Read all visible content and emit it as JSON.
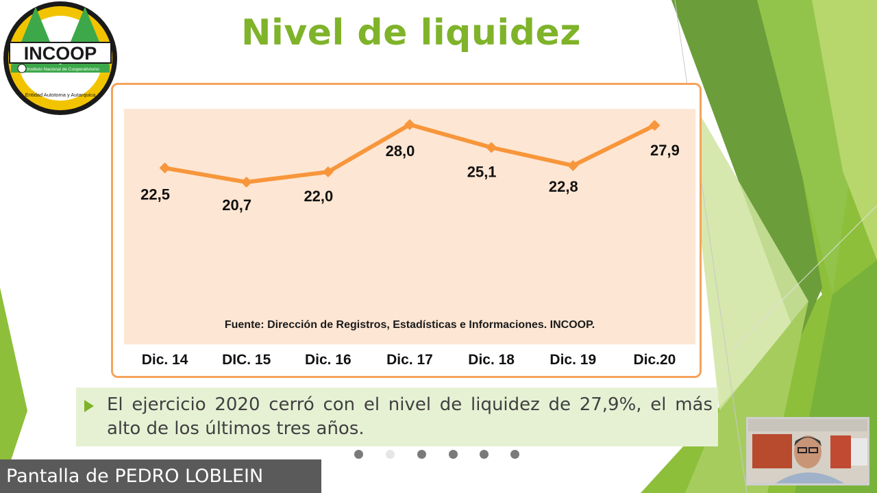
{
  "logo": {
    "name": "INCOOP",
    "subtitle": "Instituto Nacional de Cooperativismo",
    "ring_text": "Entidad Autotoma y Autarquica"
  },
  "slide": {
    "title": "Nivel de liquidez",
    "bullet_text": "El ejercicio 2020 cerró con el nivel de liquidez de 27,9%, el más alto de los últimos tres años.",
    "active_dot_index": 1,
    "dot_count": 6
  },
  "chart_data": {
    "type": "line",
    "categories": [
      "Dic. 14",
      "DIC. 15",
      "Dic. 16",
      "Dic. 17",
      "Dic. 18",
      "Dic. 19",
      "Dic.20"
    ],
    "values": [
      22.5,
      20.7,
      22.0,
      28.0,
      25.1,
      22.8,
      27.9
    ],
    "data_labels": [
      "22,5",
      "20,7",
      "22,0",
      "28,0",
      "25,1",
      "22,8",
      "27,9"
    ],
    "source_note": "Fuente: Dirección de Registros, Estadísticas e Informaciones. INCOOP.",
    "series_color": "#f7963b",
    "plot_background": "#fde6d3",
    "border_color": "#f5a35a",
    "grid": false,
    "legend": false
  },
  "screen_share": {
    "label": "Pantalla de PEDRO LOBLEIN"
  },
  "colors": {
    "title": "#7fb32a",
    "bullet_background": "#e6f1d4",
    "share_label_background": "#5a5a5a"
  }
}
